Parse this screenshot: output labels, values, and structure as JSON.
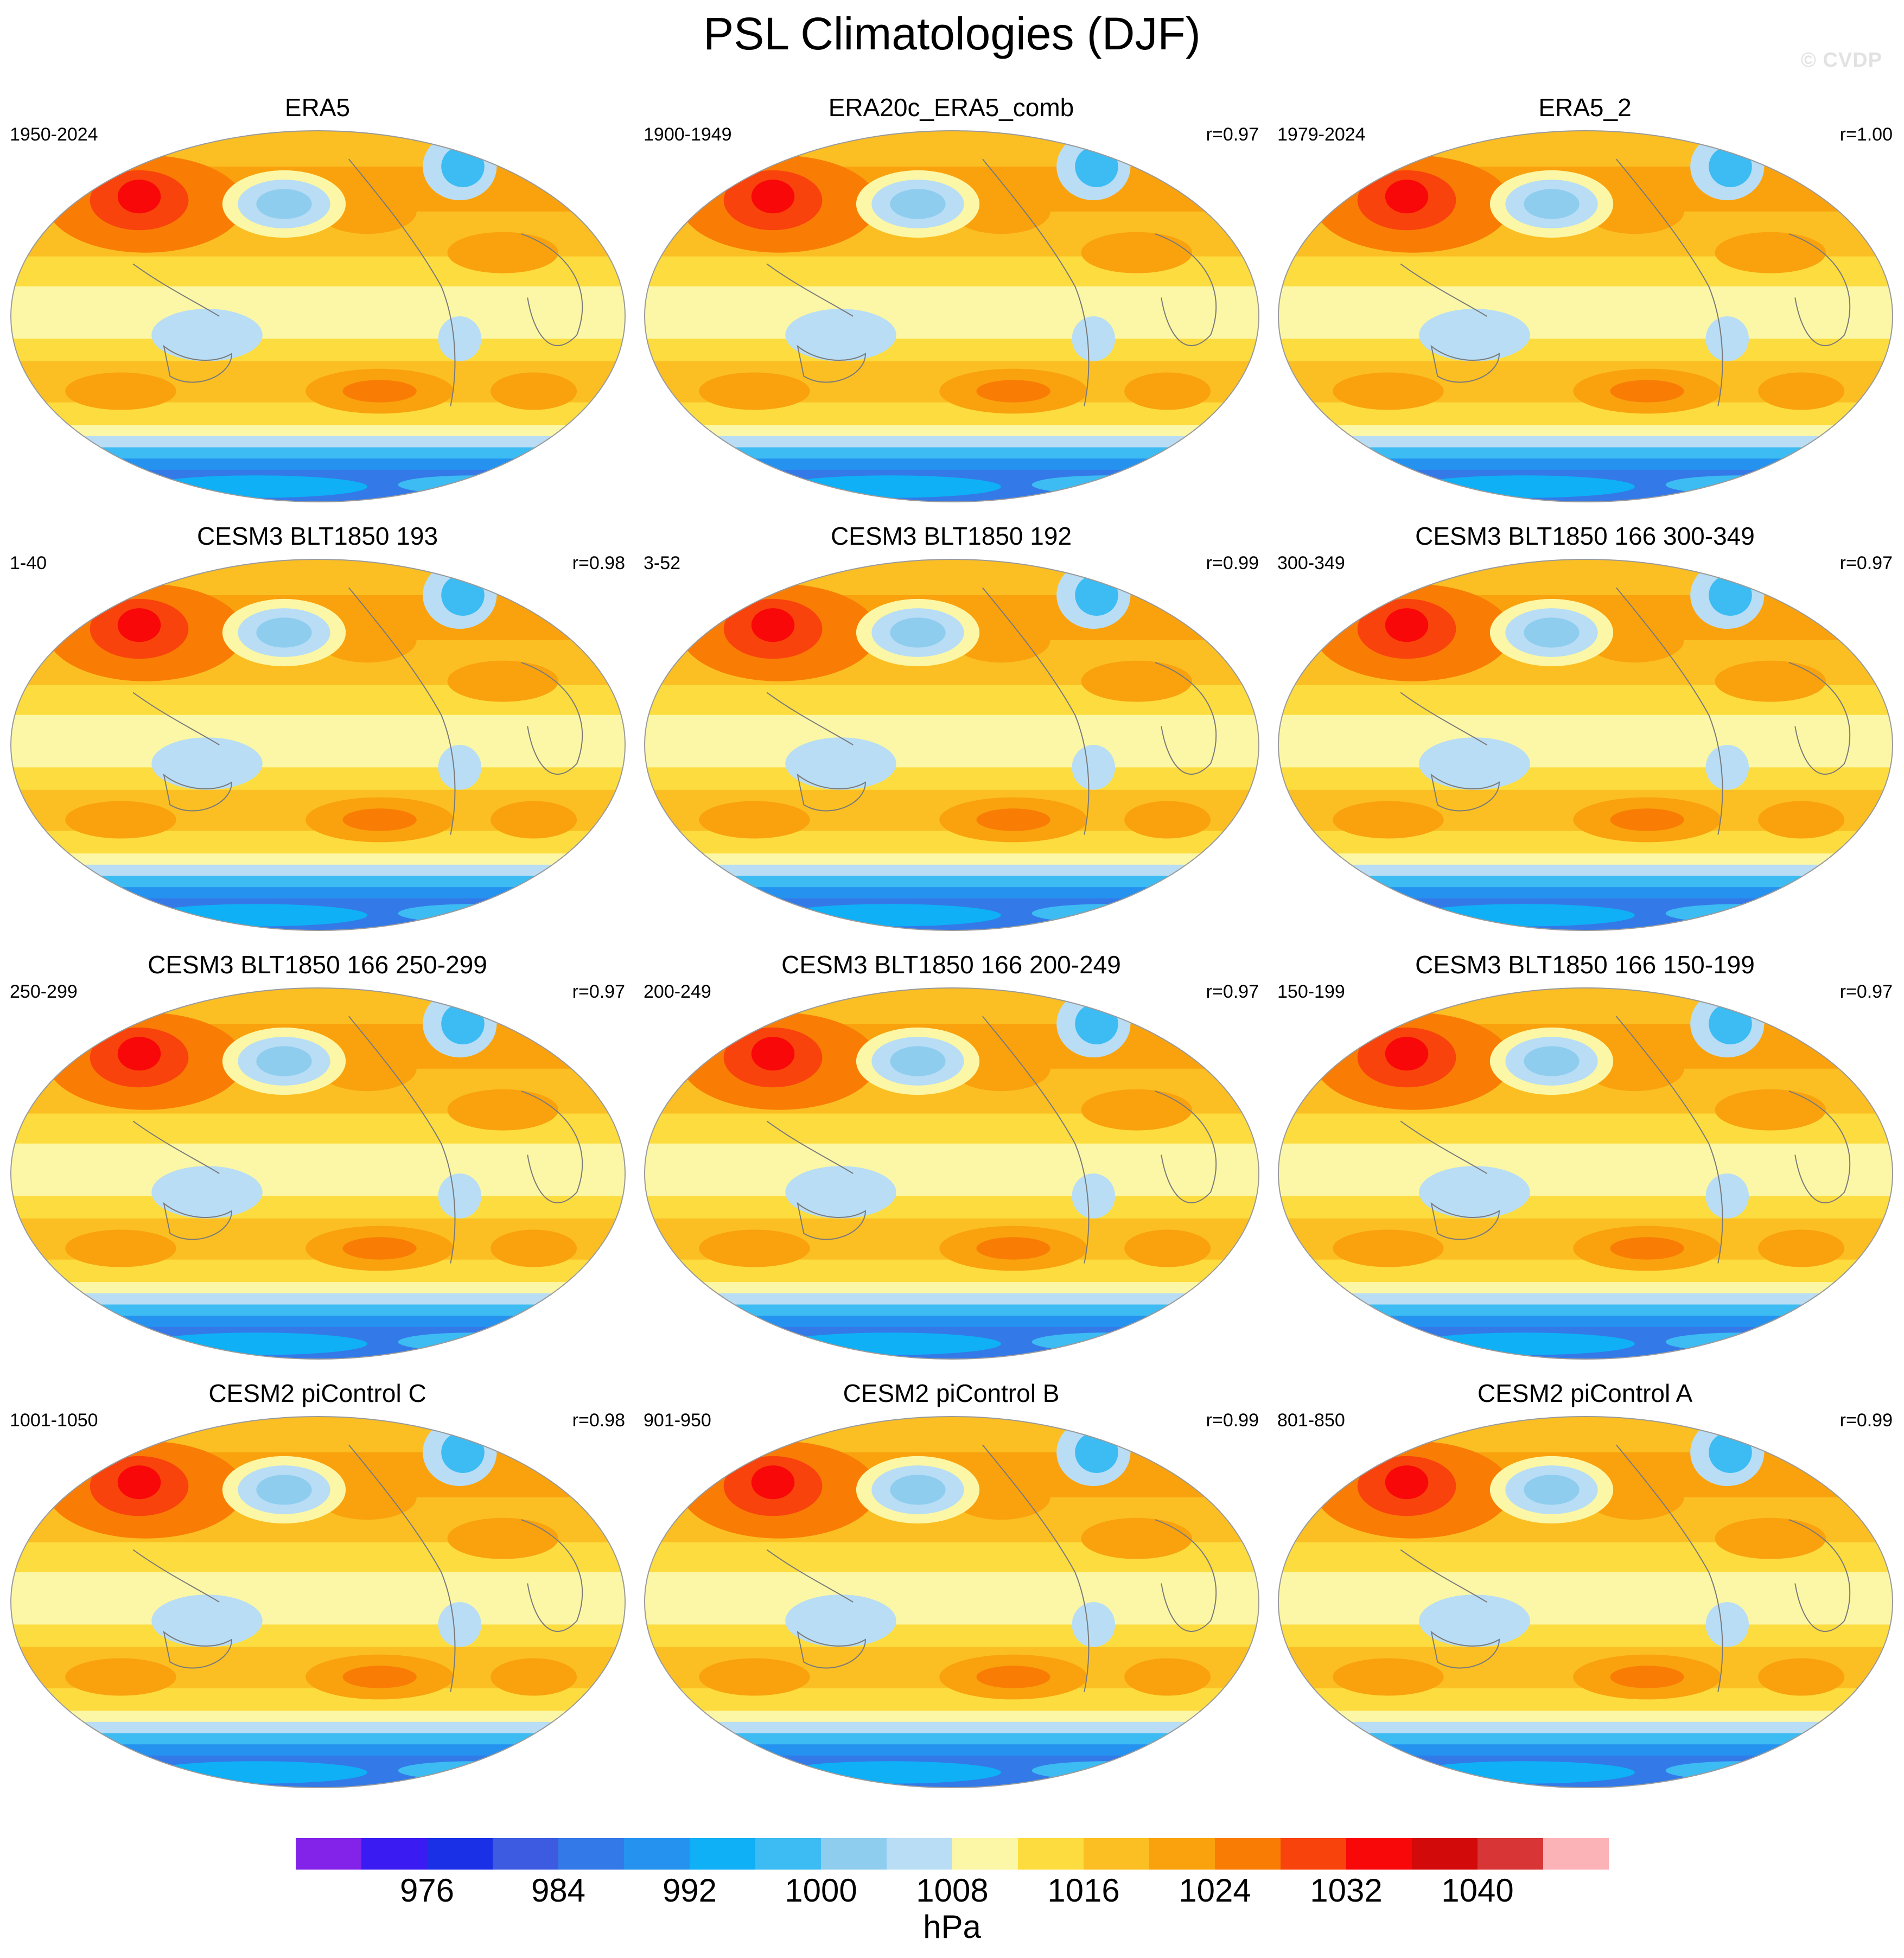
{
  "title": "PSL Climatologies (DJF)",
  "watermark": "© CVDP",
  "panels": [
    {
      "title": "ERA5",
      "period": "1950-2024",
      "r": ""
    },
    {
      "title": "ERA20c_ERA5_comb",
      "period": "1900-1949",
      "r": "r=0.97"
    },
    {
      "title": "ERA5_2",
      "period": "1979-2024",
      "r": "r=1.00"
    },
    {
      "title": "CESM3 BLT1850 193",
      "period": "1-40",
      "r": "r=0.98"
    },
    {
      "title": "CESM3 BLT1850 192",
      "period": "3-52",
      "r": "r=0.99"
    },
    {
      "title": "CESM3 BLT1850 166 300-349",
      "period": "300-349",
      "r": "r=0.97"
    },
    {
      "title": "CESM3 BLT1850 166 250-299",
      "period": "250-299",
      "r": "r=0.97"
    },
    {
      "title": "CESM3 BLT1850 166 200-249",
      "period": "200-249",
      "r": "r=0.97"
    },
    {
      "title": "CESM3 BLT1850 166 150-199",
      "period": "150-199",
      "r": "r=0.97"
    },
    {
      "title": "CESM2 piControl C",
      "period": "1001-1050",
      "r": "r=0.98"
    },
    {
      "title": "CESM2 piControl B",
      "period": "901-950",
      "r": "r=0.99"
    },
    {
      "title": "CESM2 piControl A",
      "period": "801-850",
      "r": "r=0.99"
    }
  ],
  "colorbar": {
    "units": "hPa",
    "labels": [
      "976",
      "984",
      "992",
      "1000",
      "1008",
      "1016",
      "1024",
      "1032",
      "1040"
    ],
    "colors": [
      "#8322e8",
      "#3a1cf2",
      "#1a30e6",
      "#3c5be0",
      "#3479e8",
      "#2592f0",
      "#0fb0f5",
      "#3cbcf2",
      "#8fcdee",
      "#b8ddf5",
      "#fcf7a6",
      "#fddc3f",
      "#fbbf24",
      "#f9a20e",
      "#f97d05",
      "#f9430c",
      "#f80808",
      "#d20a0a",
      "#d83636",
      "#fbb3b8"
    ]
  }
}
